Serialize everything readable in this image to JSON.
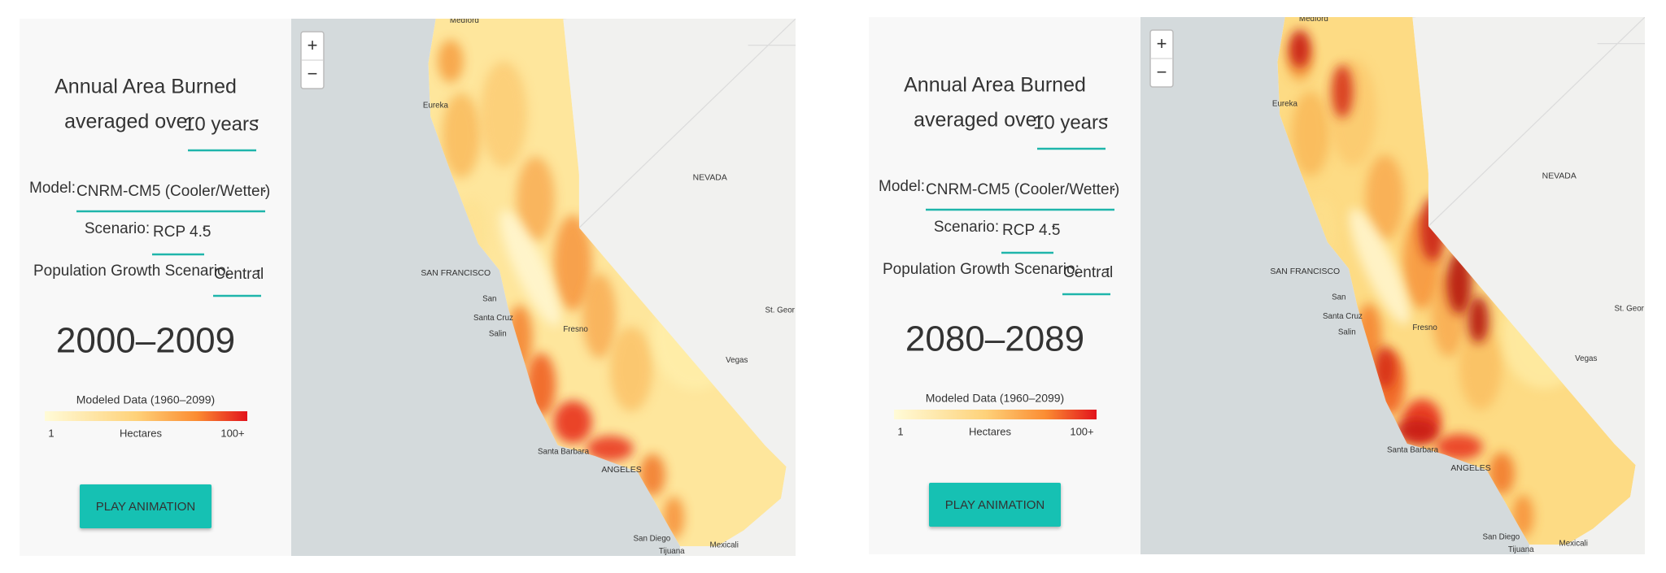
{
  "panels": [
    {
      "title": "Annual Area Burned",
      "averaged_label": "averaged over",
      "period_select": "10 years",
      "model_label": "Model:",
      "model_select": "CNRM-CM5 (Cooler/Wetter)",
      "scenario_label": "Scenario:",
      "scenario_select": "RCP 4.5",
      "population_label": "Population Growth Scenario:",
      "population_select": "Central",
      "years": "2000–2009",
      "legend": {
        "title": "Modeled Data (1960–2099)",
        "min": "1",
        "unit": "Hectares",
        "max": "100+"
      },
      "button": "PLAY ANIMATION",
      "map": {
        "zoom_in": "+",
        "zoom_out": "−",
        "labels": [
          "Medford",
          "Eureka",
          "NEVADA",
          "SAN FRANCISCO",
          "San",
          "Santa Cruz",
          "Salin",
          "Fresno",
          "St. Geor",
          "Vegas",
          "Santa Barbara",
          "ANGELES",
          "San Diego",
          "Tijuana",
          "Mexicali"
        ]
      }
    },
    {
      "title": "Annual Area Burned",
      "averaged_label": "averaged over",
      "period_select": "10 years",
      "model_label": "Model:",
      "model_select": "CNRM-CM5 (Cooler/Wetter)",
      "scenario_label": "Scenario:",
      "scenario_select": "RCP 4.5",
      "population_label": "Population Growth Scenario:",
      "population_select": "Central",
      "years": "2080–2089",
      "legend": {
        "title": "Modeled Data (1960–2099)",
        "min": "1",
        "unit": "Hectares",
        "max": "100+"
      },
      "button": "PLAY ANIMATION",
      "map": {
        "zoom_in": "+",
        "zoom_out": "−",
        "labels": [
          "Medford",
          "Eureka",
          "NEVADA",
          "SAN FRANCISCO",
          "San",
          "Santa Cruz",
          "Salin",
          "Fresno",
          "St. Geor",
          "Vegas",
          "Santa Barbara",
          "ANGELES",
          "San Diego",
          "Tijuana",
          "Mexicali"
        ]
      }
    }
  ]
}
